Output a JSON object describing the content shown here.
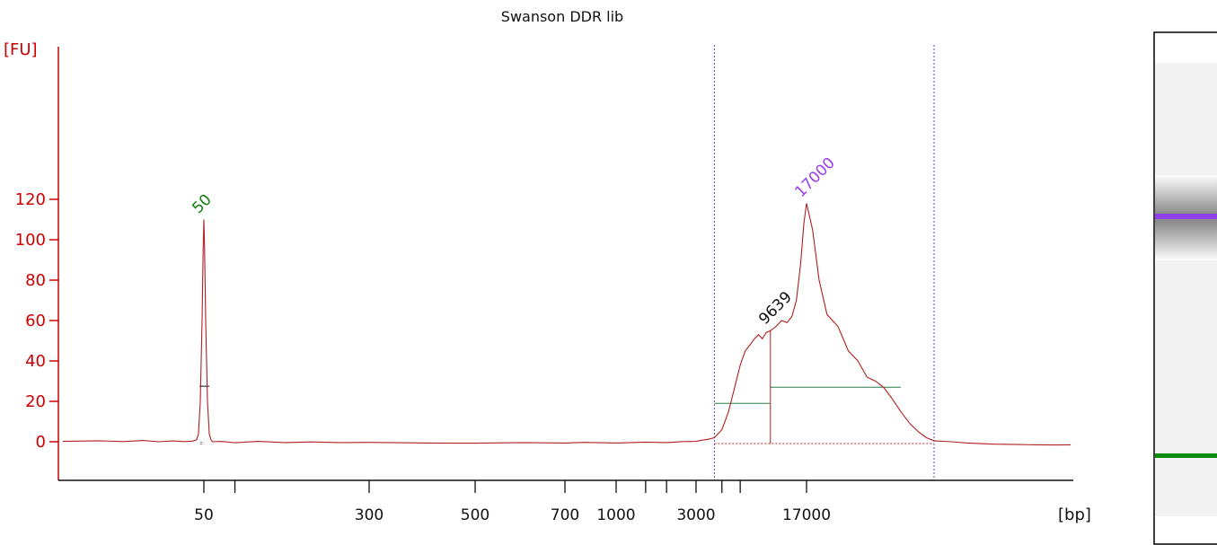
{
  "colors": {
    "axis": "#cc0000",
    "trace": "#b02020",
    "black": "#111111",
    "marker_lower": "#108010",
    "marker_upper": "#9a3ff0",
    "region_line": "#5050c0",
    "baseline_segment": "#2a7a4a",
    "gel_band_lower": "#0a8a0a",
    "gel_band_upper": "#9040e8"
  },
  "chart_data": {
    "type": "line",
    "title": "Swanson DDR lib",
    "ylabel": "[FU]",
    "xlabel": "[bp]",
    "x_scale": "electrophoresis (non-linear)",
    "y_ticks": [
      0,
      20,
      40,
      60,
      80,
      100,
      120
    ],
    "ylim": [
      -13,
      130
    ],
    "x_tick_labels": [
      "50",
      "300",
      "500",
      "700",
      "1000",
      "3000",
      "17000"
    ],
    "peaks": [
      {
        "label": "50",
        "size_bp": 50,
        "height_fu": 110,
        "color": "green"
      },
      {
        "label": "9639",
        "size_bp": 9639,
        "height_fu": 55,
        "color": "black"
      },
      {
        "label": "17000",
        "size_bp": 17000,
        "height_fu": 118,
        "color": "purple"
      }
    ],
    "region": {
      "from_bp": 4000,
      "to_bp": 40000
    },
    "series": [
      {
        "points": [
          [
            10,
            0.2
          ],
          [
            15,
            0.5
          ],
          [
            20,
            0.1
          ],
          [
            25,
            0.6
          ],
          [
            30,
            0
          ],
          [
            35,
            0.4
          ],
          [
            40,
            0.1
          ],
          [
            44,
            0.3
          ],
          [
            46,
            1
          ],
          [
            47,
            4
          ],
          [
            48,
            20
          ],
          [
            49,
            60
          ],
          [
            49.6,
            95
          ],
          [
            50,
            110
          ],
          [
            50.4,
            95
          ],
          [
            51,
            60
          ],
          [
            52,
            20
          ],
          [
            53,
            4
          ],
          [
            54,
            1
          ],
          [
            55,
            0
          ],
          [
            60,
            0.2
          ],
          [
            70,
            -0.5
          ],
          [
            90,
            0.2
          ],
          [
            120,
            -0.4
          ],
          [
            160,
            -0.1
          ],
          [
            220,
            -0.4
          ],
          [
            300,
            -0.3
          ],
          [
            400,
            -0.6
          ],
          [
            500,
            -0.7
          ],
          [
            600,
            -0.4
          ],
          [
            700,
            -0.6
          ],
          [
            800,
            -0.3
          ],
          [
            900,
            -0.5
          ],
          [
            1000,
            -0.6
          ],
          [
            1500,
            -0.2
          ],
          [
            2000,
            -0.4
          ],
          [
            2500,
            0.1
          ],
          [
            3000,
            0.2
          ],
          [
            3300,
            0.8
          ],
          [
            3600,
            1.2
          ],
          [
            4000,
            2
          ],
          [
            4500,
            6
          ],
          [
            5000,
            15
          ],
          [
            5500,
            27
          ],
          [
            6000,
            38
          ],
          [
            6500,
            45
          ],
          [
            7000,
            48
          ],
          [
            7500,
            51
          ],
          [
            8000,
            53
          ],
          [
            8500,
            51
          ],
          [
            9000,
            54
          ],
          [
            9639,
            55
          ],
          [
            10500,
            57
          ],
          [
            11500,
            60
          ],
          [
            12500,
            59
          ],
          [
            13500,
            62
          ],
          [
            14500,
            70
          ],
          [
            15500,
            88
          ],
          [
            16300,
            108
          ],
          [
            17000,
            118
          ],
          [
            17700,
            105
          ],
          [
            18500,
            80
          ],
          [
            19500,
            63
          ],
          [
            21000,
            57
          ],
          [
            22500,
            45
          ],
          [
            24000,
            40
          ],
          [
            25500,
            32
          ],
          [
            27000,
            30
          ],
          [
            28500,
            27
          ],
          [
            30000,
            22
          ],
          [
            32000,
            15
          ],
          [
            34000,
            9
          ],
          [
            36000,
            5
          ],
          [
            38000,
            2
          ],
          [
            40000,
            0.5
          ],
          [
            45000,
            0
          ],
          [
            50000,
            -0.6
          ],
          [
            60000,
            -1.2
          ],
          [
            70000,
            -1.4
          ],
          [
            80000,
            -1.5
          ],
          [
            90000,
            -1.6
          ],
          [
            100000,
            -1.5
          ]
        ]
      }
    ]
  },
  "gel": {
    "bands": [
      {
        "size_bp": 17000,
        "color": "purple"
      },
      {
        "size_bp": 50,
        "color": "green"
      }
    ]
  }
}
